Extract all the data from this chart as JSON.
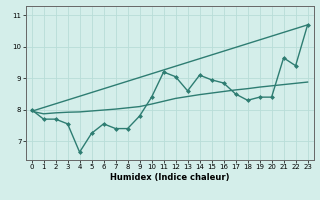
{
  "bg_color": "#d4eeea",
  "line_color": "#2e7d72",
  "grid_color": "#b8ddd8",
  "xlabel": "Humidex (Indice chaleur)",
  "xlim": [
    -0.5,
    23.5
  ],
  "ylim": [
    6.4,
    11.3
  ],
  "yticks": [
    7,
    8,
    9,
    10,
    11
  ],
  "xticks": [
    0,
    1,
    2,
    3,
    4,
    5,
    6,
    7,
    8,
    9,
    10,
    11,
    12,
    13,
    14,
    15,
    16,
    17,
    18,
    19,
    20,
    21,
    22,
    23
  ],
  "series_main": {
    "x": [
      0,
      1,
      2,
      3,
      4,
      5,
      6,
      7,
      8,
      9,
      10,
      11,
      12,
      13,
      14,
      15,
      16,
      17,
      18,
      19,
      20,
      21,
      22,
      23
    ],
    "y": [
      8.0,
      7.7,
      7.7,
      7.55,
      6.65,
      7.25,
      7.55,
      7.4,
      7.4,
      7.8,
      8.4,
      9.2,
      9.05,
      8.6,
      9.1,
      8.95,
      8.85,
      8.5,
      8.3,
      8.4,
      8.4,
      9.65,
      9.4,
      10.7
    ]
  },
  "series_linear": {
    "x": [
      0,
      23
    ],
    "y": [
      7.95,
      10.7
    ]
  },
  "series_smooth": {
    "x": [
      0,
      1,
      2,
      3,
      4,
      5,
      6,
      7,
      8,
      9,
      10,
      11,
      12,
      13,
      14,
      15,
      16,
      17,
      18,
      19,
      20,
      21,
      22,
      23
    ],
    "y": [
      7.95,
      7.87,
      7.9,
      7.92,
      7.93,
      7.96,
      7.99,
      8.02,
      8.06,
      8.1,
      8.18,
      8.27,
      8.36,
      8.42,
      8.48,
      8.53,
      8.58,
      8.63,
      8.67,
      8.72,
      8.76,
      8.8,
      8.84,
      8.88
    ]
  },
  "marker_size": 2.5,
  "line_width": 1.0
}
